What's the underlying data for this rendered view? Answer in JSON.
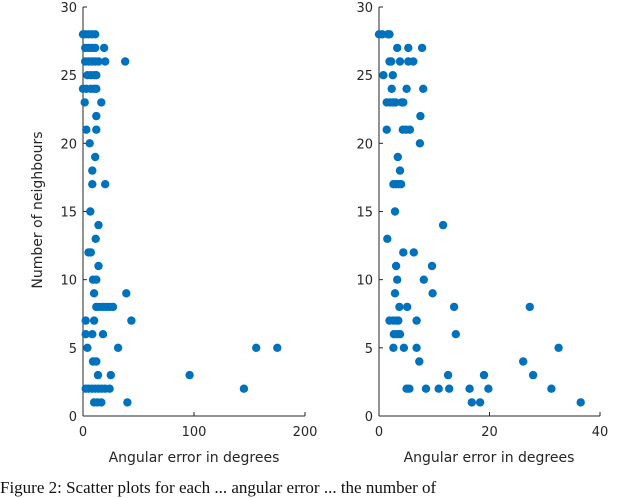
{
  "figure": {
    "caption": "Figure 2: Scatter plots for each ... angular error ... the number of"
  },
  "chart_data": [
    {
      "type": "scatter",
      "title": "",
      "xlabel": "Angular error in degrees",
      "ylabel": "Number of neighbours",
      "xlim": [
        0,
        200
      ],
      "ylim": [
        0,
        30
      ],
      "xticks": [
        0,
        100,
        200
      ],
      "yticks": [
        0,
        5,
        10,
        15,
        20,
        25,
        30
      ],
      "grid": false,
      "marker_color": "#0072BD",
      "points": [
        [
          0,
          28
        ],
        [
          2,
          28
        ],
        [
          5,
          28
        ],
        [
          8,
          28
        ],
        [
          11,
          28
        ],
        [
          2,
          27
        ],
        [
          5,
          27
        ],
        [
          8,
          27
        ],
        [
          11,
          27
        ],
        [
          19,
          27
        ],
        [
          2,
          26
        ],
        [
          5,
          26
        ],
        [
          8,
          26
        ],
        [
          11,
          26
        ],
        [
          14,
          26
        ],
        [
          20,
          26
        ],
        [
          38,
          26
        ],
        [
          4,
          25
        ],
        [
          7,
          25
        ],
        [
          10,
          25
        ],
        [
          12,
          25
        ],
        [
          0,
          24
        ],
        [
          3,
          24
        ],
        [
          7,
          24
        ],
        [
          10,
          24
        ],
        [
          12,
          24
        ],
        [
          1.5,
          23
        ],
        [
          16.5,
          23
        ],
        [
          12,
          22
        ],
        [
          3,
          21
        ],
        [
          12,
          21
        ],
        [
          6,
          20
        ],
        [
          11,
          19
        ],
        [
          8.4,
          18
        ],
        [
          8.4,
          17
        ],
        [
          20,
          17
        ],
        [
          6.6,
          15
        ],
        [
          14,
          14
        ],
        [
          11.4,
          13
        ],
        [
          5,
          12
        ],
        [
          7,
          12
        ],
        [
          14,
          11
        ],
        [
          9,
          10
        ],
        [
          12,
          10
        ],
        [
          10,
          9
        ],
        [
          39,
          9
        ],
        [
          12,
          8
        ],
        [
          15,
          8
        ],
        [
          18,
          8
        ],
        [
          21,
          8
        ],
        [
          24,
          8
        ],
        [
          27,
          8
        ],
        [
          2.4,
          7
        ],
        [
          10,
          7
        ],
        [
          43.6,
          7
        ],
        [
          2.4,
          6
        ],
        [
          8.4,
          6
        ],
        [
          18,
          6
        ],
        [
          4,
          5
        ],
        [
          31.6,
          5
        ],
        [
          156,
          5
        ],
        [
          175,
          5
        ],
        [
          9,
          4
        ],
        [
          12,
          4
        ],
        [
          13.5,
          3
        ],
        [
          25,
          3
        ],
        [
          96,
          3
        ],
        [
          2.4,
          2
        ],
        [
          5,
          2
        ],
        [
          8,
          2
        ],
        [
          11,
          2
        ],
        [
          14,
          2
        ],
        [
          17,
          2
        ],
        [
          20,
          2
        ],
        [
          24,
          2
        ],
        [
          145,
          2
        ],
        [
          10,
          1
        ],
        [
          13,
          1
        ],
        [
          16.5,
          1
        ],
        [
          40,
          1
        ]
      ]
    },
    {
      "type": "scatter",
      "title": "",
      "xlabel": "Angular error in degrees",
      "ylabel": "",
      "xlim": [
        0,
        40
      ],
      "ylim": [
        0,
        30
      ],
      "xticks": [
        0,
        20,
        40
      ],
      "yticks": [
        0,
        5,
        10,
        15,
        20,
        25,
        30
      ],
      "grid": false,
      "marker_color": "#0072BD",
      "points": [
        [
          0,
          28
        ],
        [
          0.6,
          28
        ],
        [
          1.6,
          28
        ],
        [
          1.9,
          28
        ],
        [
          3.3,
          27
        ],
        [
          5.3,
          27
        ],
        [
          7.8,
          27
        ],
        [
          1.9,
          26
        ],
        [
          2.2,
          26
        ],
        [
          3.8,
          26
        ],
        [
          5.3,
          26
        ],
        [
          6.2,
          26
        ],
        [
          0.8,
          25
        ],
        [
          2.5,
          25
        ],
        [
          2.3,
          24
        ],
        [
          5,
          24
        ],
        [
          8,
          24
        ],
        [
          1.4,
          23
        ],
        [
          2,
          23
        ],
        [
          2.6,
          23
        ],
        [
          3,
          23
        ],
        [
          4.1,
          23
        ],
        [
          4.4,
          23
        ],
        [
          7.5,
          22
        ],
        [
          1.4,
          21
        ],
        [
          4.3,
          21
        ],
        [
          4.9,
          21
        ],
        [
          5.6,
          21
        ],
        [
          7.4,
          20
        ],
        [
          3.4,
          19
        ],
        [
          3.8,
          18
        ],
        [
          2.6,
          17
        ],
        [
          3.1,
          17
        ],
        [
          3.6,
          17
        ],
        [
          4,
          17
        ],
        [
          2.9,
          15
        ],
        [
          11.6,
          14
        ],
        [
          1.5,
          13
        ],
        [
          4.4,
          12
        ],
        [
          6.3,
          12
        ],
        [
          3.1,
          11
        ],
        [
          9.6,
          11
        ],
        [
          3.3,
          10
        ],
        [
          8.1,
          10
        ],
        [
          2.9,
          9
        ],
        [
          9.7,
          9
        ],
        [
          3.7,
          8
        ],
        [
          5.1,
          8
        ],
        [
          13.6,
          8
        ],
        [
          27.3,
          8
        ],
        [
          1.9,
          7
        ],
        [
          2.6,
          7
        ],
        [
          3.2,
          7
        ],
        [
          3.5,
          7
        ],
        [
          6.8,
          7
        ],
        [
          2.7,
          6
        ],
        [
          3.3,
          6
        ],
        [
          3.8,
          6
        ],
        [
          13.9,
          6
        ],
        [
          2.6,
          5
        ],
        [
          4.5,
          5
        ],
        [
          6.8,
          5
        ],
        [
          32.5,
          5
        ],
        [
          7.3,
          4
        ],
        [
          26.1,
          4
        ],
        [
          12.5,
          3
        ],
        [
          19,
          3
        ],
        [
          27.9,
          3
        ],
        [
          5,
          2
        ],
        [
          5.5,
          2
        ],
        [
          8.5,
          2
        ],
        [
          10.8,
          2
        ],
        [
          12.7,
          2
        ],
        [
          16.4,
          2
        ],
        [
          19.8,
          2
        ],
        [
          31.2,
          2
        ],
        [
          16.8,
          1
        ],
        [
          18.3,
          1
        ],
        [
          36.5,
          1
        ]
      ]
    }
  ]
}
